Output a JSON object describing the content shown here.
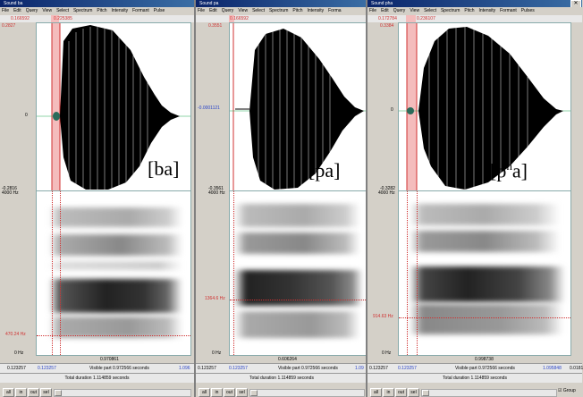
{
  "windows": [
    {
      "title": "Sound ba",
      "menu": [
        "File",
        "Edit",
        "Query",
        "View",
        "Select",
        "Spectrum",
        "Pitch",
        "Intensity",
        "Formant",
        "Pulse"
      ],
      "sel_start": "0.166592",
      "sel_end": "0.225385",
      "wave_max": "0.2827",
      "wave_zero": "0",
      "wave_min": "-0.2816",
      "spec_top": "4000 Hz",
      "spec_bottom": "0 Hz",
      "cursor_freq": "470.24 Hz",
      "time_center": "0.970861",
      "bar_left": "0.123257",
      "bar_left2": "0.123257",
      "visible_part": "Visible part 0.972566 seconds",
      "bar_right": "1.096",
      "total_duration": "Total duration 1.114859 seconds",
      "buttons": [
        "all",
        "in",
        "out",
        "sel"
      ],
      "tag": "[ba]"
    },
    {
      "title": "Sound pa",
      "menu": [
        "File",
        "Edit",
        "Query",
        "View",
        "Select",
        "Spectrum",
        "Pitch",
        "Intensity",
        "Forma"
      ],
      "sel_start": "0.166592",
      "wave_max": "0.3551",
      "wave_zero": "-0.0001121",
      "wave_min": "-0.3561",
      "spec_top": "4000 Hz",
      "spec_bottom": "0 Hz",
      "cursor_freq": "1364.6 Hz",
      "time_center": "0.606264",
      "bar_left": "0.123257",
      "bar_left2": "0.123257",
      "visible_part": "Visible part 0.972566 seconds",
      "bar_right": "1.09",
      "total_duration": "Total duration 1.114859 seconds",
      "buttons": [
        "all",
        "in",
        "out",
        "sel"
      ],
      "tag": "[pa]"
    },
    {
      "title": "Sound pha",
      "menu": [
        "File",
        "Edit",
        "Query",
        "View",
        "Select",
        "Spectrum",
        "Pitch",
        "Intensity",
        "Formant",
        "Pulses"
      ],
      "sel_start": "0.172784",
      "sel_end": "0.236107",
      "wave_max": "0.3384",
      "wave_zero": "0",
      "wave_min": "-0.3282",
      "spec_top": "4000 Hz",
      "spec_bottom": "0 Hz",
      "cursor_freq": "914.63 Hz",
      "time_center": "0.998738",
      "bar_left": "0.123257",
      "bar_left2": "0.123257",
      "visible_part": "Visible part 0.972566 seconds",
      "bar_right": "1.095848",
      "bar_right2": "0.0181",
      "total_duration": "Total duration 1.114859 seconds",
      "buttons": [
        "all",
        "in",
        "out",
        "sel"
      ],
      "tag_base": "[p",
      "tag_sup": "h",
      "tag_end": "a]",
      "group_label": "Group"
    }
  ],
  "colors": {
    "accent_red": "#d03030",
    "blue_label": "#2b45c8",
    "titlebar": "#0a246a"
  }
}
